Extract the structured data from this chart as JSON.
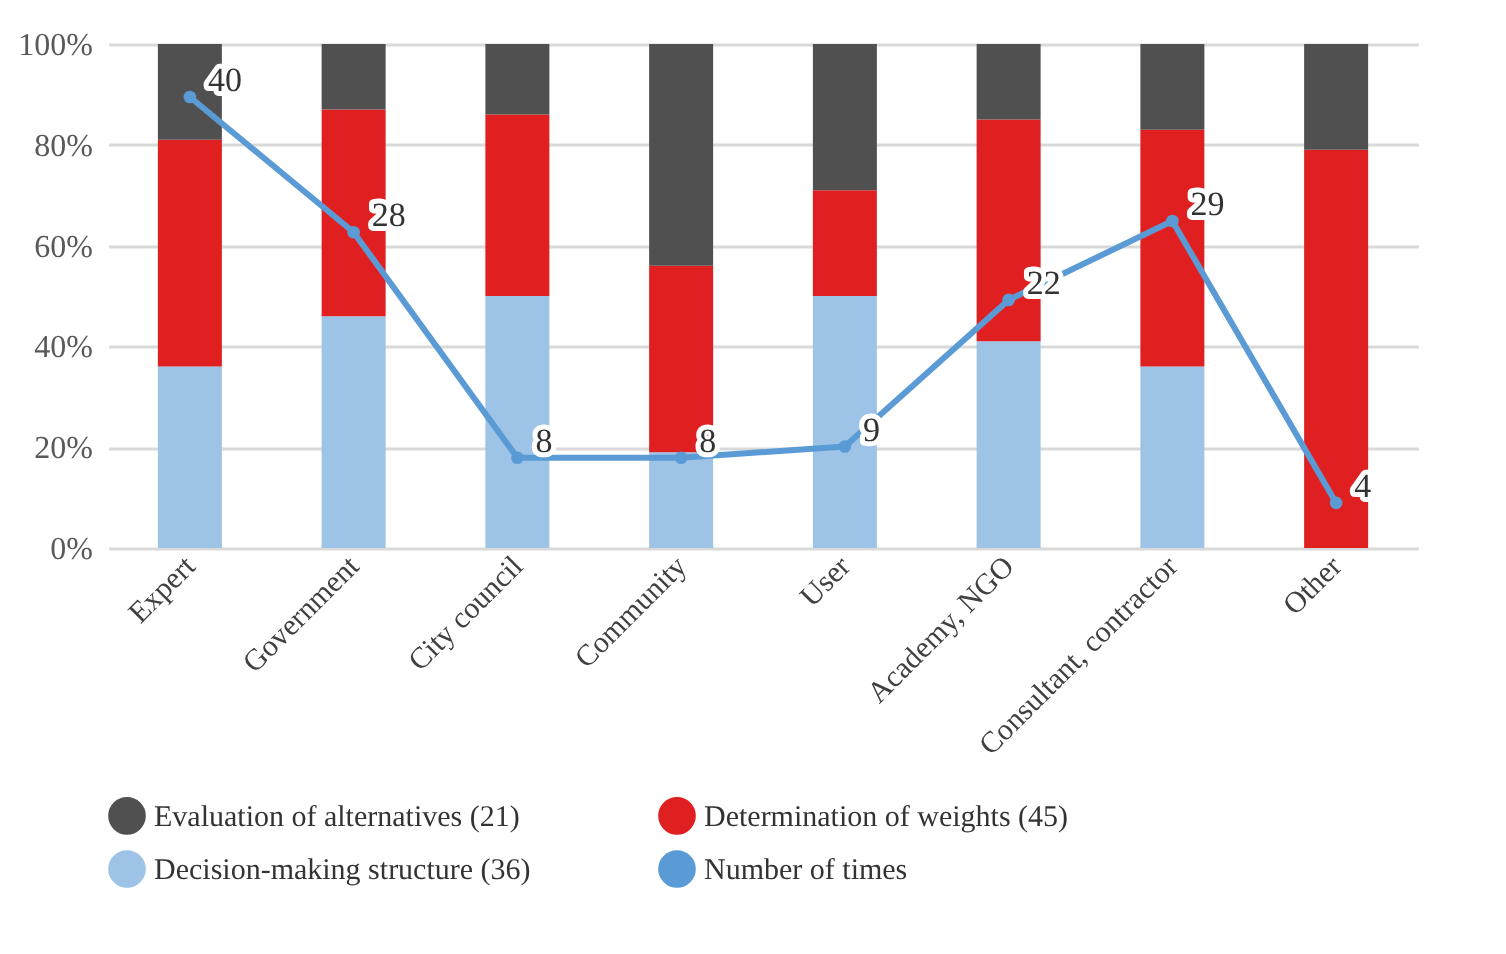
{
  "chart_data": {
    "type": "bar",
    "stacked": true,
    "categories": [
      "Expert",
      "Government",
      "City council",
      "Community",
      "User",
      "Academy, NGO",
      "Consultant, contractor",
      "Other"
    ],
    "series": [
      {
        "name": "Decision-making structure (36)",
        "color": "#9dc3e6",
        "values": [
          36,
          46,
          50,
          19,
          50,
          41,
          36,
          0
        ]
      },
      {
        "name": "Determination of weights (45)",
        "color": "#e02020",
        "values": [
          45,
          41,
          36,
          37,
          21,
          44,
          47,
          79
        ]
      },
      {
        "name": "Evaluation of alternatives (21)",
        "color": "#505050",
        "values": [
          19,
          13,
          14,
          44,
          29,
          15,
          17,
          21
        ]
      },
      {
        "name": "Number of times",
        "type": "line",
        "axis": "y2",
        "color": "#5b9bd5",
        "values": [
          40,
          28,
          8,
          8,
          9,
          22,
          29,
          4
        ],
        "value_labels": [
          "40",
          "28",
          "8",
          "8",
          "9",
          "22",
          "29",
          "4"
        ]
      }
    ],
    "ylim": [
      0,
      100
    ],
    "yticks": [
      {
        "value": 0,
        "label": "0%"
      },
      {
        "value": 20,
        "label": "20%"
      },
      {
        "value": 40,
        "label": "40%"
      },
      {
        "value": 60,
        "label": "60%"
      },
      {
        "value": 80,
        "label": "80%"
      },
      {
        "value": 100,
        "label": "100%"
      }
    ],
    "y2lim": [
      0,
      44.7
    ],
    "grid": "y",
    "legend": "bottom",
    "marker": "circle",
    "line_style": "solid"
  }
}
